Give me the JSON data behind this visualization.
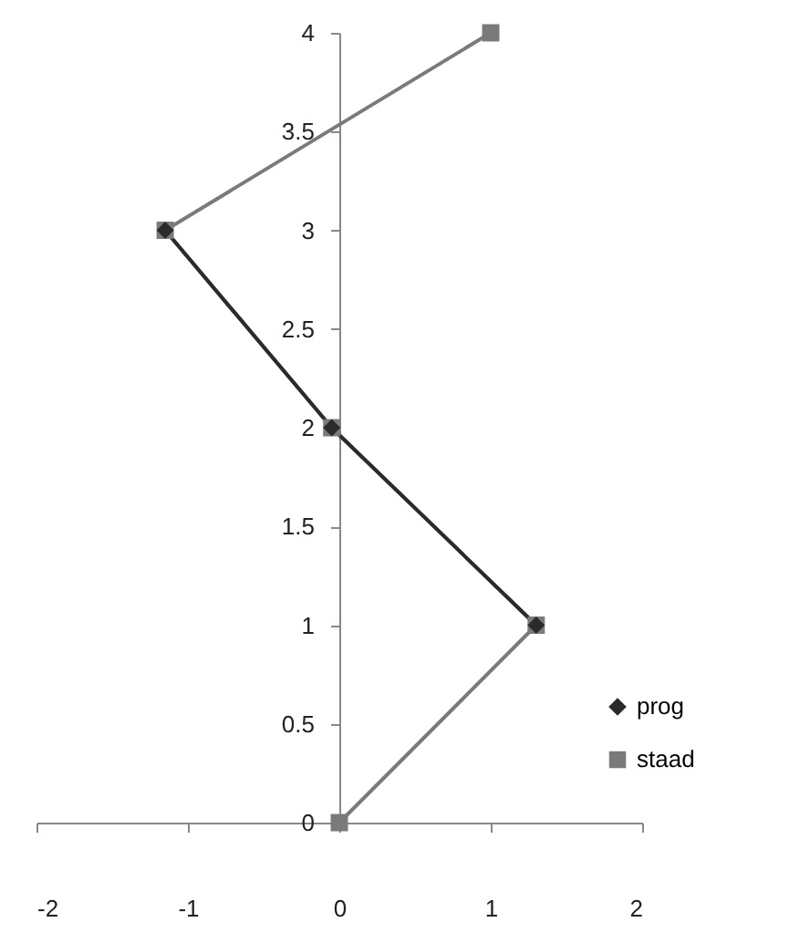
{
  "chart_data": {
    "type": "line",
    "xlim": [
      -2,
      2
    ],
    "xticks": [
      -2,
      -1,
      0,
      1,
      2
    ],
    "ylim": [
      0,
      4
    ],
    "yticks": [
      0,
      0.5,
      1,
      1.5,
      2,
      2.5,
      3,
      3.5,
      4
    ],
    "grid": false,
    "legend": "right",
    "series": [
      {
        "name": "prog",
        "color": "#2b2b2b",
        "marker": "diamond",
        "x": [
          1.3,
          -0.05,
          -1.15
        ],
        "values": [
          1,
          2,
          3
        ]
      },
      {
        "name": "staad",
        "color": "#7a7a7a",
        "marker": "square",
        "x": [
          0,
          1.3,
          -0.05,
          -1.15,
          1
        ],
        "values": [
          0,
          1,
          2,
          3,
          4
        ]
      }
    ]
  }
}
